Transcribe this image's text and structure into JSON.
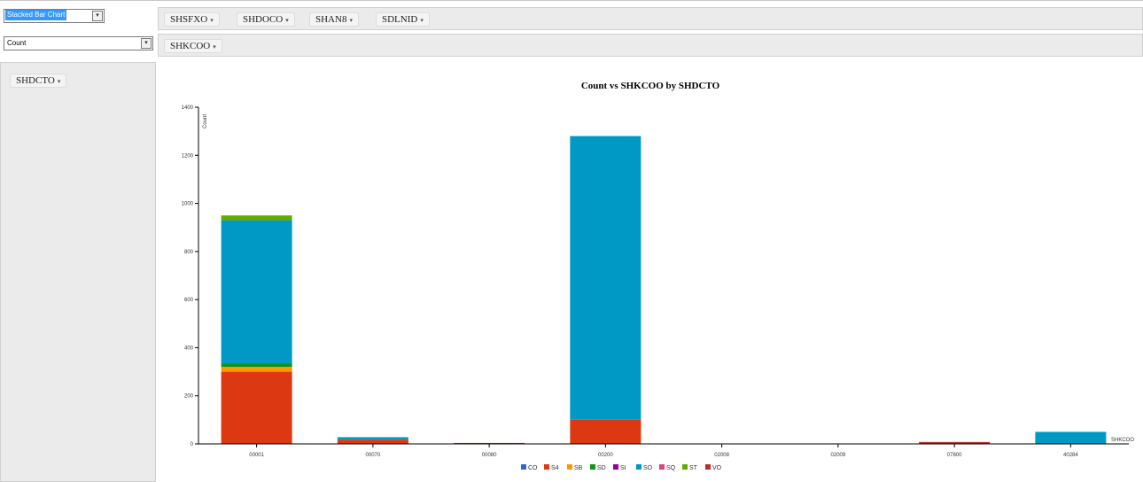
{
  "controls": {
    "renderer": "Stacked Bar Chart",
    "aggregator": "Count",
    "col_fields": [
      "SHSFXO",
      "SHDOCO",
      "SHAN8",
      "SDLNID"
    ],
    "row_fields": [
      "SHKCOO"
    ],
    "unused_fields": [
      "SHDCTO"
    ],
    "caret": "▾",
    "select_arrow": "▾"
  },
  "colors": {
    "CO": "#3366cc",
    "S4": "#dc3912",
    "SB": "#ff9900",
    "SD": "#109618",
    "SI": "#990099",
    "SO": "#0099c6",
    "SQ": "#dd4477",
    "ST": "#66aa00",
    "VO": "#b82e2e"
  },
  "chart_data": {
    "type": "bar",
    "stacked": true,
    "title": "Count vs SHKCOO by SHDCTO",
    "xlabel": "SHKCOO",
    "ylabel": "Count",
    "ylim": [
      0,
      1400
    ],
    "yticks": [
      0,
      200,
      400,
      600,
      800,
      1000,
      1200,
      1400
    ],
    "categories": [
      "00001",
      "00070",
      "00080",
      "00200",
      "02008",
      "02009",
      "07800",
      "40284"
    ],
    "series": [
      {
        "name": "CO",
        "values": [
          0,
          0,
          0,
          0,
          0,
          0,
          0,
          0
        ]
      },
      {
        "name": "S4",
        "values": [
          300,
          18,
          4,
          100,
          0,
          0,
          0,
          0
        ]
      },
      {
        "name": "SB",
        "values": [
          20,
          0,
          0,
          0,
          0,
          0,
          0,
          0
        ]
      },
      {
        "name": "SD",
        "values": [
          15,
          0,
          0,
          0,
          0,
          0,
          0,
          0
        ]
      },
      {
        "name": "SI",
        "values": [
          0,
          0,
          0,
          0,
          0,
          0,
          0,
          0
        ]
      },
      {
        "name": "SO",
        "values": [
          595,
          10,
          0,
          1180,
          0,
          0,
          0,
          50
        ]
      },
      {
        "name": "SQ",
        "values": [
          0,
          0,
          0,
          0,
          0,
          0,
          0,
          0
        ]
      },
      {
        "name": "ST",
        "values": [
          20,
          0,
          0,
          0,
          0,
          0,
          0,
          0
        ]
      },
      {
        "name": "VO",
        "values": [
          0,
          0,
          0,
          0,
          0,
          0,
          8,
          0
        ]
      }
    ],
    "grid": false,
    "legend": "bottom"
  }
}
